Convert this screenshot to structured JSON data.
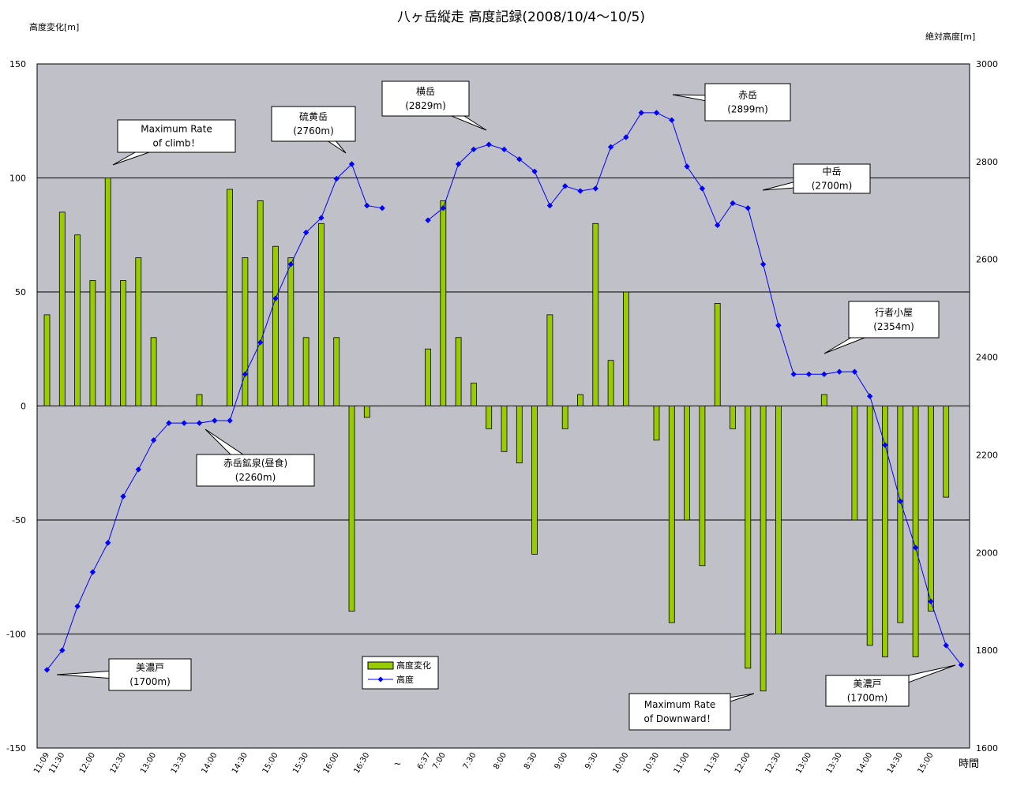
{
  "chart_data": {
    "type": "bar+line",
    "title": "八ヶ岳縦走  高度記録(2008/10/4～10/5)",
    "y_left_label": "高度変化[m]",
    "y_right_label": "絶対高度[m]",
    "x_label": "時間",
    "y_left_range": [
      -150,
      150
    ],
    "y_left_ticks": [
      "150",
      "100",
      "50",
      "0",
      "-50",
      "-100",
      "-150"
    ],
    "y_right_range": [
      1600,
      3000
    ],
    "y_right_ticks": [
      "3000",
      "2800",
      "2600",
      "2400",
      "2200",
      "2000",
      "1800",
      "1600"
    ],
    "grid": "horizontal at 100, 50, 0, -50, -100",
    "x_tick_labels": [
      "11:09",
      "11:30",
      "12:00",
      "12:30",
      "13:00",
      "13:30",
      "14:00",
      "14:30",
      "15:00",
      "15:30",
      "16:00",
      "16:30",
      "~",
      "6:37",
      "7:00",
      "7:30",
      "8:00",
      "8:30",
      "9:00",
      "9:30",
      "10:00",
      "10:30",
      "11:00",
      "11:30",
      "12:00",
      "12:30",
      "13:00",
      "13:30",
      "14:00",
      "14:30",
      "15:00"
    ],
    "series": [
      {
        "name": "高度変化",
        "kind": "bar",
        "axis": "left",
        "color": "#99cc00",
        "values": [
          40,
          85,
          75,
          55,
          100,
          55,
          65,
          30,
          0,
          0,
          5,
          0,
          95,
          65,
          90,
          70,
          65,
          30,
          80,
          30,
          -90,
          -5,
          null,
          null,
          null,
          25,
          90,
          30,
          10,
          -10,
          -20,
          -25,
          -65,
          40,
          -10,
          5,
          80,
          20,
          50,
          0,
          -15,
          -95,
          -50,
          -70,
          45,
          -10,
          -115,
          -125,
          -100,
          0,
          0,
          5,
          0,
          -50,
          -105,
          -110,
          -95,
          -110,
          -90,
          -40,
          null
        ]
      },
      {
        "name": "高度",
        "kind": "line",
        "axis": "right",
        "color": "#0000ff",
        "values": [
          1760,
          1800,
          1890,
          1960,
          2020,
          2115,
          2170,
          2230,
          2265,
          2265,
          2265,
          2270,
          2270,
          2365,
          2430,
          2520,
          2590,
          2655,
          2685,
          2765,
          2795,
          2710,
          2705,
          null,
          null,
          2680,
          2705,
          2795,
          2825,
          2835,
          2825,
          2805,
          2780,
          2710,
          2750,
          2740,
          2745,
          2830,
          2850,
          2900,
          2900,
          2885,
          2790,
          2745,
          2670,
          2715,
          2705,
          2590,
          2465,
          2365,
          2365,
          2365,
          2370,
          2370,
          2320,
          2220,
          2105,
          2010,
          1900,
          1810,
          1770
        ]
      }
    ],
    "legend": {
      "position": "bottom-center",
      "entries": [
        "高度変化",
        "高度"
      ]
    },
    "annotations": [
      {
        "lines": [
          "Maximum Rate",
          "of climb！"
        ]
      },
      {
        "lines": [
          "硫黄岳",
          "(2760m)"
        ]
      },
      {
        "lines": [
          "横岳",
          "(2829m)"
        ]
      },
      {
        "lines": [
          "赤岳",
          "(2899m)"
        ]
      },
      {
        "lines": [
          "中岳",
          "(2700m)"
        ]
      },
      {
        "lines": [
          "行者小屋",
          "(2354m)"
        ]
      },
      {
        "lines": [
          "赤岳鉱泉(昼食)",
          "(2260m)"
        ]
      },
      {
        "lines": [
          "美濃戸",
          "(1700m)"
        ]
      },
      {
        "lines": [
          "Maximum Rate",
          "of Downward！"
        ]
      },
      {
        "lines": [
          "美濃戸",
          "(1700m)"
        ]
      }
    ]
  }
}
